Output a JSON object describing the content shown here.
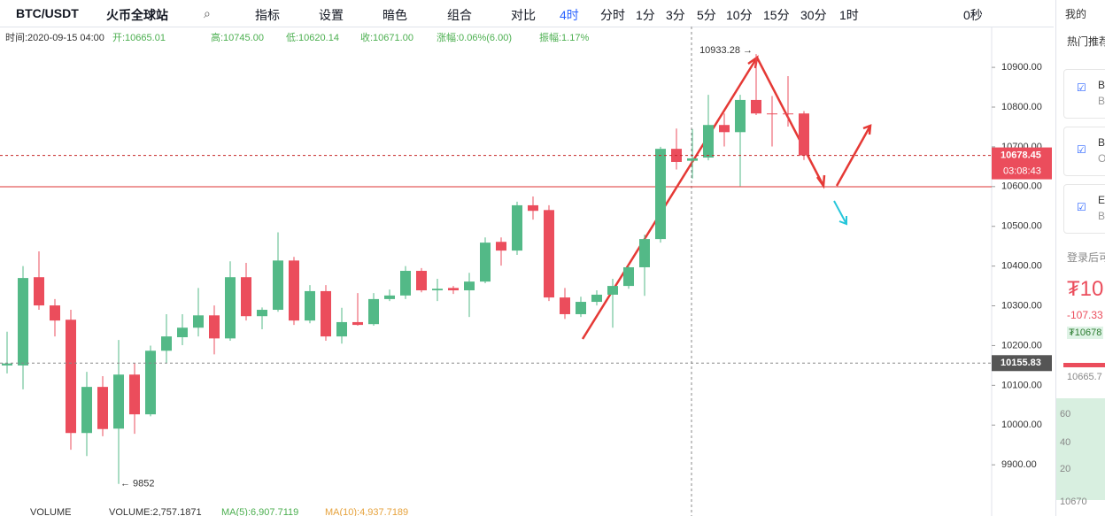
{
  "toolbar": {
    "symbol": "BTC/USDT",
    "exchange": "火币全球站",
    "tools": [
      "指标",
      "设置",
      "暗色",
      "组合",
      "对比"
    ],
    "active_interval": "4时",
    "intervals": [
      "分时",
      "1分",
      "3分",
      "5分",
      "10分",
      "15分",
      "30分",
      "1时"
    ],
    "timer": "0秒"
  },
  "info": [
    "时间:2020-09-15 04:00",
    "开:10665.01",
    "高:10745.00",
    "低:10620.14",
    "收:10671.00",
    "涨幅:0.06%(6.00)",
    "振幅:1.17%"
  ],
  "chart_data": {
    "type": "candlestick",
    "open": [
      10150,
      10150,
      10372,
      10301,
      10265,
      9980,
      10096,
      9991,
      10127,
      10027,
      10187,
      10221,
      10245,
      10276,
      10218,
      10372,
      10274,
      10290,
      10414,
      10263,
      10337,
      10223,
      10259,
      10254,
      10317,
      10326,
      10388,
      10339,
      10345,
      10339,
      10361,
      10461,
      10439,
      10553,
      10541,
      10321,
      10279,
      10310,
      10328,
      10350,
      10397,
      10468,
      10695,
      10665.01,
      10673,
      10755,
      10737,
      10818,
      10784,
      10784,
      10784
    ],
    "high": [
      10235,
      10400,
      10437,
      10317,
      10290,
      10134,
      10123,
      10214,
      10156,
      10200,
      10279,
      10279,
      10345,
      10301,
      10412,
      10408,
      10296,
      10485,
      10423,
      10352,
      10352,
      10295,
      10332,
      10332,
      10341,
      10400,
      10395,
      10368,
      10350,
      10383,
      10472,
      10472,
      10562,
      10575,
      10553,
      10345,
      10323,
      10339,
      10368,
      10401,
      10479,
      10700,
      10746,
      10745,
      10831,
      10784,
      10831,
      10933.28,
      10828,
      10878,
      10790
    ],
    "low": [
      10130,
      10090,
      10290,
      10223,
      9938,
      9922,
      9972,
      9852,
      9978,
      10022,
      10156,
      10201,
      10223,
      10178,
      10212,
      10263,
      10241,
      10285,
      10252,
      10256,
      10212,
      10205,
      10250,
      10250,
      10312,
      10317,
      10334,
      10312,
      10330,
      10272,
      10357,
      10401,
      10428,
      10517,
      10312,
      10267,
      10272,
      10301,
      10245,
      10343,
      10325,
      10459,
      10643,
      10620.14,
      10666,
      10701,
      10601,
      10780,
      10701,
      10751,
      10667
    ],
    "close": [
      10155,
      10370,
      10301,
      10263,
      9980,
      10096,
      9990,
      10127,
      10027,
      10187,
      10223,
      10245,
      10276,
      10218,
      10372,
      10274,
      10290,
      10414,
      10263,
      10337,
      10223,
      10259,
      10252,
      10317,
      10326,
      10388,
      10339,
      10343,
      10339,
      10361,
      10459,
      10439,
      10553,
      10539,
      10321,
      10279,
      10310,
      10328,
      10350,
      10397,
      10468,
      10695,
      10662,
      10671,
      10755,
      10737,
      10818,
      10784,
      10782,
      10782,
      10678.45
    ],
    "colors": {
      "up": "#53b987",
      "down": "#eb4d5c"
    },
    "ylim": [
      9789,
      10996
    ],
    "yticks": [
      {
        "value": 10900,
        "label": "10900.00"
      },
      {
        "value": 10800,
        "label": "10800.00"
      },
      {
        "value": 10700,
        "label": "10700.00"
      },
      {
        "value": 10600,
        "label": "10600.00"
      },
      {
        "value": 10500,
        "label": "10500.00"
      },
      {
        "value": 10400,
        "label": "10400.00"
      },
      {
        "value": 10300,
        "label": "10300.00"
      },
      {
        "value": 10200,
        "label": "10200.00"
      },
      {
        "value": 10100,
        "label": "10100.00"
      },
      {
        "value": 10000,
        "label": "10000.00"
      },
      {
        "value": 9900,
        "label": "9900.00"
      }
    ],
    "last_price": 10678.45,
    "countdown": "03:08:43",
    "ref_price": 10155.83,
    "high_label": "10933.28 →",
    "low_label": "← 9852"
  },
  "volume": [
    "VOLUME",
    "VOLUME:2,757.1871",
    "MA(5):6,907.7119",
    "MA(10):4,937.7189"
  ],
  "side": {
    "header": "我的",
    "section": "热门推荐",
    "items": [
      {
        "name": "B",
        "sub": "B"
      },
      {
        "name": "B",
        "sub": "O"
      },
      {
        "name": "E",
        "sub": "B"
      }
    ],
    "login": "登录后可",
    "price": "₮10",
    "change": "-107.33",
    "badge": "₮10678",
    "pin": "10665.7",
    "axis": [
      "60",
      "40",
      "20",
      "10670"
    ]
  }
}
